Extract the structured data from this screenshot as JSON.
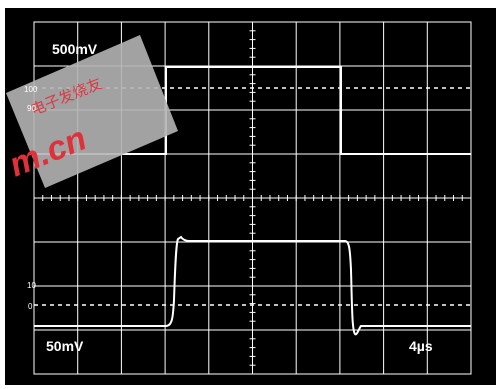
{
  "scope": {
    "channel_top_scale": "500mV",
    "channel_bottom_scale": "50mV",
    "timebase": "4µs",
    "top_markers": {
      "upper": "100",
      "lower": "90"
    },
    "bottom_markers": {
      "upper": "10",
      "lower": "0"
    }
  },
  "watermark": {
    "text": "m.cn",
    "color": "#e0303a"
  },
  "colors": {
    "screen": "#000000",
    "trace": "#ffffff",
    "grid": "#ffffff",
    "badge": "#b4b4b4"
  }
}
